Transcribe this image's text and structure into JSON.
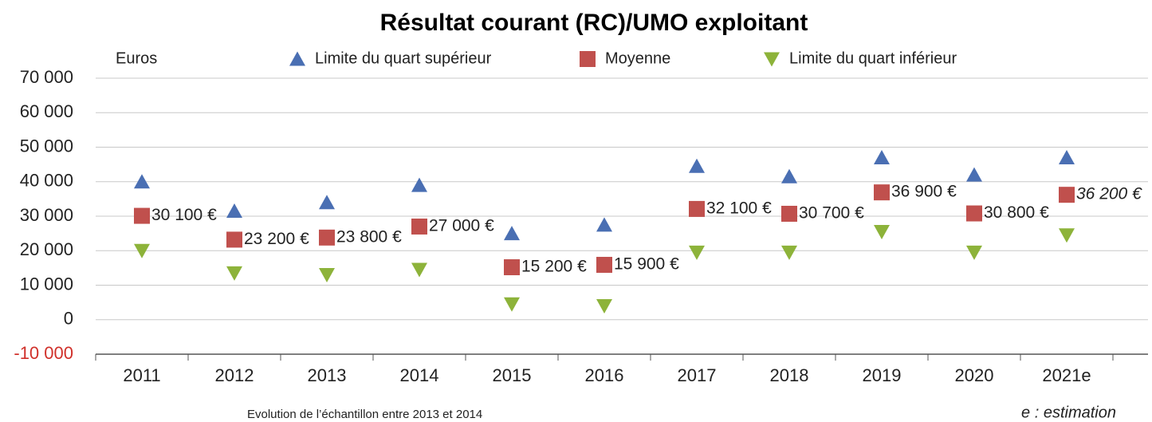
{
  "chart_data": {
    "type": "scatter",
    "title": "Résultat courant (RC)/UMO exploitant",
    "y_label": "Euros",
    "categories": [
      "2011",
      "2012",
      "2013",
      "2014",
      "2015",
      "2016",
      "2017",
      "2018",
      "2019",
      "2020",
      "2021e"
    ],
    "series": [
      {
        "name": "Limite du quart supérieur",
        "color": "#4a6fb3",
        "marker": "triangle-up",
        "values": [
          40000,
          31500,
          34000,
          39000,
          25000,
          27500,
          44500,
          41500,
          47000,
          42000,
          47000
        ]
      },
      {
        "name": "Moyenne",
        "color": "#c0504d",
        "marker": "square",
        "values": [
          30100,
          23200,
          23800,
          27000,
          15200,
          15900,
          32100,
          30700,
          36900,
          30800,
          36200
        ],
        "value_labels": [
          "30 100 €",
          "23 200 €",
          "23 800 €",
          "27 000 €",
          "15 200 €",
          "15 900 €",
          "32 100 €",
          "30 700 €",
          "36 900 €",
          "30 800 €",
          "36 200 €"
        ]
      },
      {
        "name": "Limite du quart inférieur",
        "color": "#8db33a",
        "marker": "triangle-down",
        "values": [
          20000,
          13500,
          13000,
          14500,
          4500,
          4000,
          19500,
          19500,
          25500,
          19500,
          24500
        ]
      }
    ],
    "ylim": [
      -10000,
      70000
    ],
    "yticks": [
      {
        "value": 70000,
        "label": "70 000"
      },
      {
        "value": 60000,
        "label": "60 000"
      },
      {
        "value": 50000,
        "label": "50 000"
      },
      {
        "value": 40000,
        "label": "40 000"
      },
      {
        "value": 30000,
        "label": "30 000"
      },
      {
        "value": 20000,
        "label": "20 000"
      },
      {
        "value": 10000,
        "label": "10 000"
      },
      0,
      {
        "value": -10000,
        "label": "-10 000"
      }
    ],
    "grid": true,
    "footnote": "Evolution de l’échantillon entre 2013 et 2014",
    "note": "e : estimation"
  }
}
